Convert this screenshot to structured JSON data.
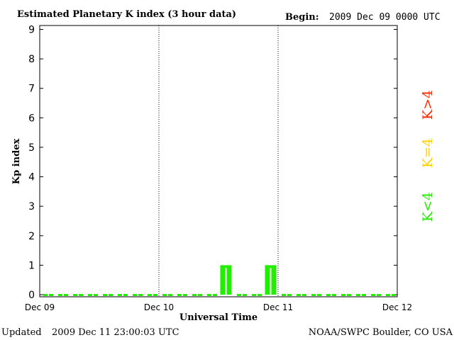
{
  "header": {
    "title": "Estimated Planetary K index (3 hour data)",
    "begin_label": "Begin:",
    "begin_value": "2009 Dec 09 0000 UTC"
  },
  "footer": {
    "updated_label": "Updated",
    "updated_value": "2009 Dec 11 23:00:03 UTC",
    "source": "NOAA/SWPC Boulder, CO USA"
  },
  "legend": {
    "high": {
      "label": "K>4",
      "color": "#ff2a00"
    },
    "mid": {
      "label": "K=4",
      "color": "#ffd000"
    },
    "low": {
      "label": "K<4",
      "color": "#22ee00"
    }
  },
  "chart_data": {
    "type": "bar",
    "ylabel": "Kp index",
    "xlabel": "Universal Time",
    "ylim": [
      0,
      9
    ],
    "yticks": [
      "0",
      "1",
      "2",
      "3",
      "4",
      "5",
      "6",
      "7",
      "8",
      "9"
    ],
    "xticks": [
      "Dec 09",
      "Dec 10",
      "Dec 11",
      "Dec 12"
    ],
    "day_dividers": [
      "Dec 10",
      "Dec 11"
    ],
    "bar_color": "#22ee00",
    "categories": [
      "Dec 09 00",
      "Dec 09 03",
      "Dec 09 06",
      "Dec 09 09",
      "Dec 09 12",
      "Dec 09 15",
      "Dec 09 18",
      "Dec 09 21",
      "Dec 10 00",
      "Dec 10 03",
      "Dec 10 06",
      "Dec 10 09",
      "Dec 10 12",
      "Dec 10 15",
      "Dec 10 18",
      "Dec 10 21",
      "Dec 11 00",
      "Dec 11 03",
      "Dec 11 06",
      "Dec 11 09",
      "Dec 11 12",
      "Dec 11 15",
      "Dec 11 18",
      "Dec 11 21"
    ],
    "values": [
      0,
      0,
      0,
      0,
      0,
      0,
      0,
      0,
      0,
      0,
      0,
      0,
      1,
      0,
      0,
      1,
      0,
      0,
      0,
      0,
      0,
      0,
      0,
      0
    ]
  }
}
